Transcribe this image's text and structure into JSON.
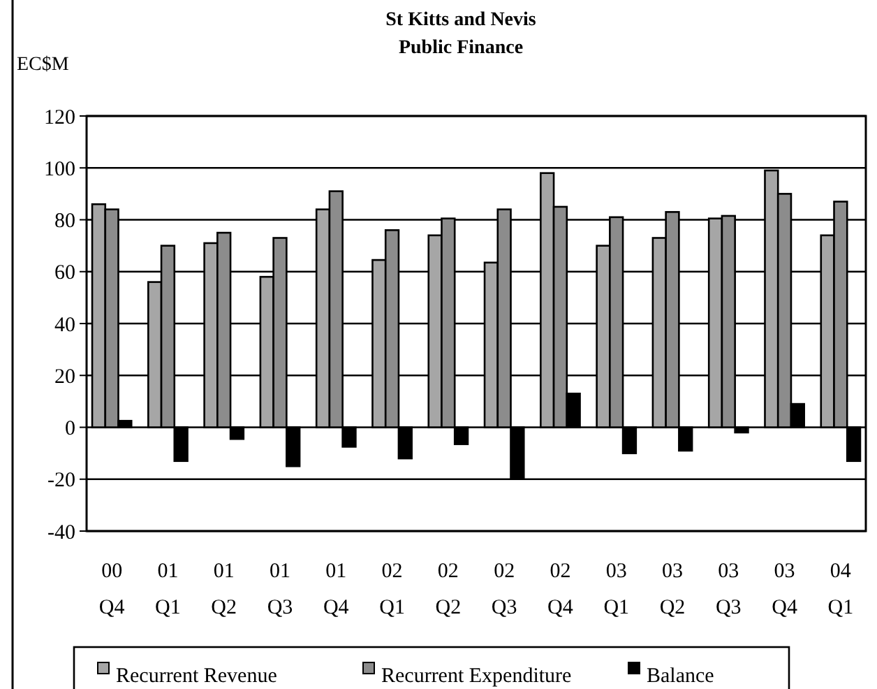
{
  "chart_data": {
    "type": "bar",
    "title": "St Kitts and Nevis",
    "subtitle": "Public Finance",
    "ylabel": "EC$M",
    "categories": [
      "00 Q4",
      "01 Q1",
      "01 Q2",
      "01 Q3",
      "01 Q4",
      "02 Q1",
      "02 Q2",
      "02 Q3",
      "02 Q4",
      "03 Q1",
      "03 Q2",
      "03 Q3",
      "03 Q4",
      "04 Q1"
    ],
    "series": [
      {
        "name": "Recurrent Revenue",
        "color": "#a6a6a6",
        "values": [
          86,
          56,
          71,
          58,
          84,
          64.5,
          74,
          63.5,
          98,
          70,
          73,
          80.5,
          99,
          74
        ]
      },
      {
        "name": "Recurrent Expenditure",
        "color": "#8c8c8c",
        "values": [
          84,
          70,
          75,
          73,
          91,
          76,
          80.5,
          84,
          85,
          81,
          83,
          81.5,
          90,
          87
        ]
      },
      {
        "name": "Balance",
        "color": "#000000",
        "values": [
          2.5,
          -13,
          -4.5,
          -15,
          -7.5,
          -12,
          -6.5,
          -19.5,
          13,
          -10,
          -9,
          -2,
          9,
          -13
        ]
      }
    ],
    "ylim": [
      -40,
      120
    ],
    "yticks": [
      -40,
      -20,
      0,
      20,
      40,
      60,
      80,
      100,
      120
    ],
    "grid": "y",
    "legend": "bottom"
  }
}
